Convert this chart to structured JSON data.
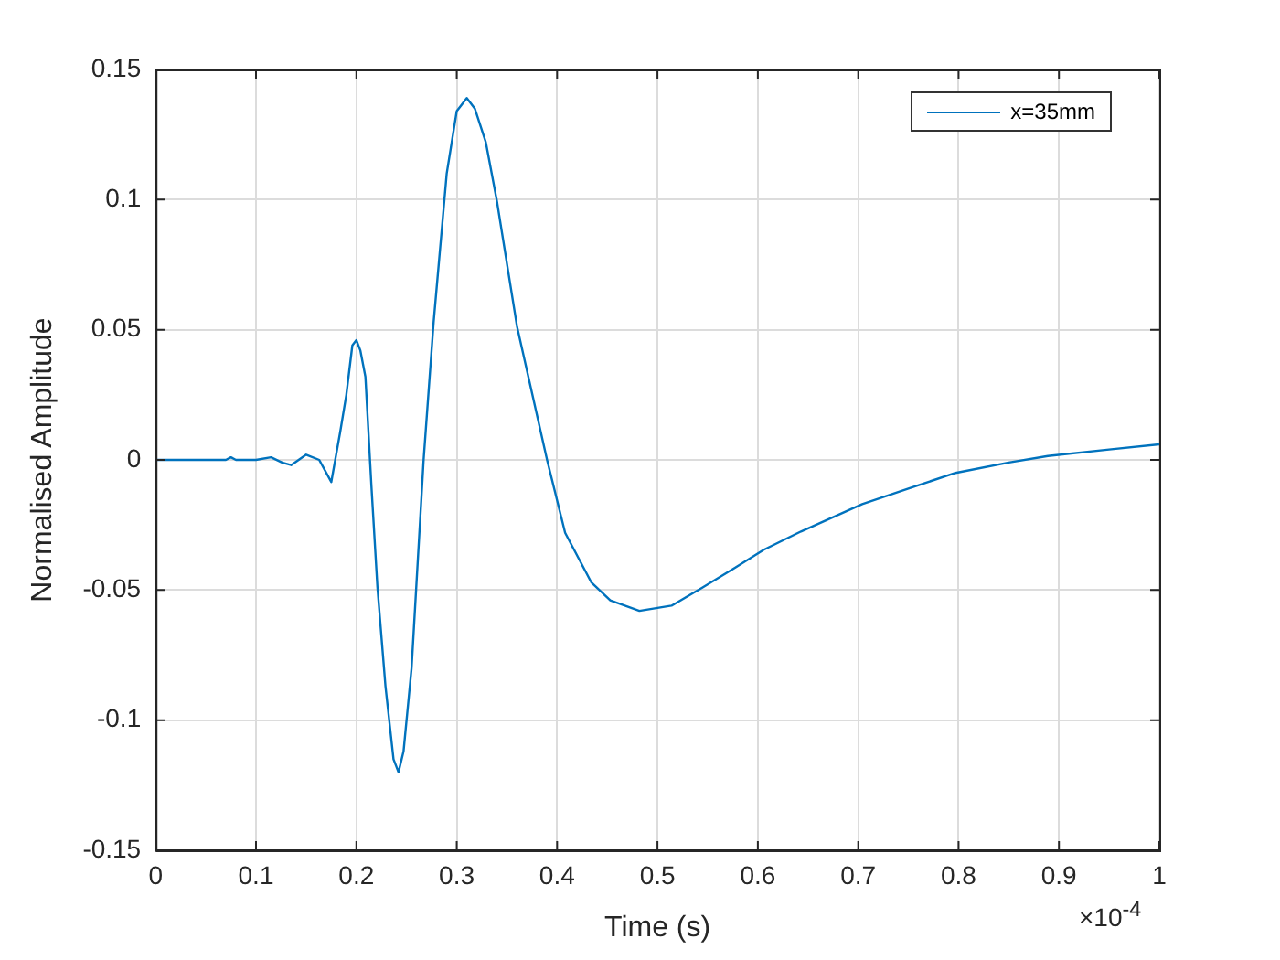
{
  "chart_data": {
    "type": "line",
    "xlabel": "Time (s)",
    "ylabel": "Normalised Amplitude",
    "annotations": [
      "×10$^{-4}$"
    ],
    "xlim": [
      0,
      1
    ],
    "xticks": [
      0,
      0.1,
      0.2,
      0.3,
      0.4,
      0.5,
      0.6,
      0.7,
      0.8,
      0.9,
      1
    ],
    "ylim": [
      -0.15,
      0.15
    ],
    "yticks": [
      -0.15,
      -0.1,
      -0.05,
      0,
      0.05,
      0.1,
      0.15
    ],
    "grid": true,
    "legend": "top right",
    "marker": "none",
    "line_style": "solid",
    "series": [
      {
        "name": "x=35mm",
        "color": "#0072bd",
        "x": [
          0,
          0.05,
          0.07,
          0.075,
          0.08,
          0.1,
          0.115,
          0.126,
          0.135,
          0.15,
          0.163,
          0.175,
          0.184,
          0.19,
          0.196,
          0.2,
          0.204,
          0.209,
          0.215,
          0.221,
          0.229,
          0.237,
          0.242,
          0.247,
          0.255,
          0.267,
          0.277,
          0.29,
          0.3,
          0.31,
          0.318,
          0.329,
          0.34,
          0.36,
          0.39,
          0.408,
          0.434,
          0.453,
          0.482,
          0.514,
          0.545,
          0.575,
          0.606,
          0.643,
          0.704,
          0.75,
          0.797,
          0.85,
          0.889,
          0.95,
          1
        ],
        "values": [
          0,
          0,
          0,
          0.001,
          0,
          0,
          0.001,
          -0.001,
          -0.002,
          0.002,
          0,
          -0.0085,
          0.011,
          0.025,
          0.044,
          0.046,
          0.042,
          0.032,
          -0.01,
          -0.049,
          -0.087,
          -0.115,
          -0.12,
          -0.112,
          -0.08,
          0,
          0.053,
          0.11,
          0.134,
          0.139,
          0.135,
          0.122,
          0.0995,
          0.0514,
          0,
          -0.028,
          -0.047,
          -0.054,
          -0.058,
          -0.056,
          -0.049,
          -0.042,
          -0.0345,
          -0.0275,
          -0.017,
          -0.011,
          -0.005,
          -0.001,
          0.0015,
          0.004,
          0.006
        ]
      }
    ]
  }
}
